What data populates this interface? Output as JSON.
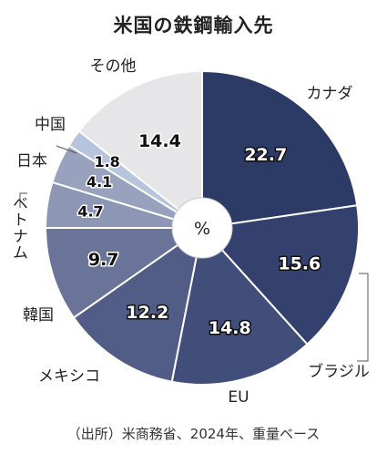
{
  "chart_data": {
    "type": "pie",
    "variant": "donut",
    "title": "米国の鉄鋼輸入先",
    "center_label": "%",
    "source": "（出所）米商務省、2024年、重量ベース",
    "slices": [
      {
        "label": "カナダ",
        "value": 22.7,
        "color": "#2c3a66"
      },
      {
        "label": "ブラジル",
        "value": 15.6,
        "color": "#34416e"
      },
      {
        "label": "EU",
        "value": 14.8,
        "color": "#424e7a"
      },
      {
        "label": "メキシコ",
        "value": 12.2,
        "color": "#525d87"
      },
      {
        "label": "韓国",
        "value": 9.7,
        "color": "#6a7498"
      },
      {
        "label": "ベトナム",
        "value": 4.7,
        "color": "#8d96b4"
      },
      {
        "label": "日本",
        "value": 4.1,
        "color": "#98a2bf"
      },
      {
        "label": "中国",
        "value": 1.8,
        "color": "#b7c4dd"
      },
      {
        "label": "その他",
        "value": 14.4,
        "color": "#e6e6e8"
      }
    ]
  }
}
